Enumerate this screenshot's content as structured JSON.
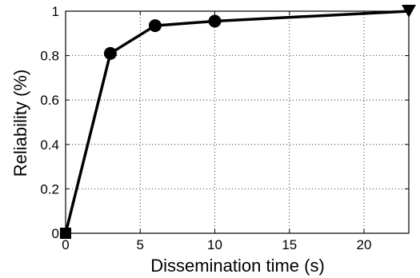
{
  "chart_data": {
    "type": "line",
    "title": "",
    "xlabel": "Dissemination time (s)",
    "ylabel": "Reliability (%)",
    "xlim": [
      0,
      23
    ],
    "ylim": [
      0,
      1
    ],
    "xticks": [
      0,
      5,
      10,
      15,
      20
    ],
    "yticks": [
      0,
      0.2,
      0.4,
      0.6,
      0.8,
      1
    ],
    "xtick_labels": [
      "0",
      "5",
      "10",
      "15",
      "20"
    ],
    "ytick_labels": [
      "0",
      "0.2",
      "0.4",
      "0.6",
      "0.8",
      "1"
    ],
    "grid": true,
    "series": [
      {
        "points": [
          {
            "x": 0,
            "y": 0,
            "marker": "square"
          },
          {
            "x": 3,
            "y": 0.81,
            "marker": "circle"
          },
          {
            "x": 6,
            "y": 0.935,
            "marker": "circle"
          },
          {
            "x": 10,
            "y": 0.955,
            "marker": "circle"
          },
          {
            "x": 23,
            "y": 1.0,
            "marker": "triangle-down"
          }
        ],
        "color": "#000000"
      }
    ]
  }
}
